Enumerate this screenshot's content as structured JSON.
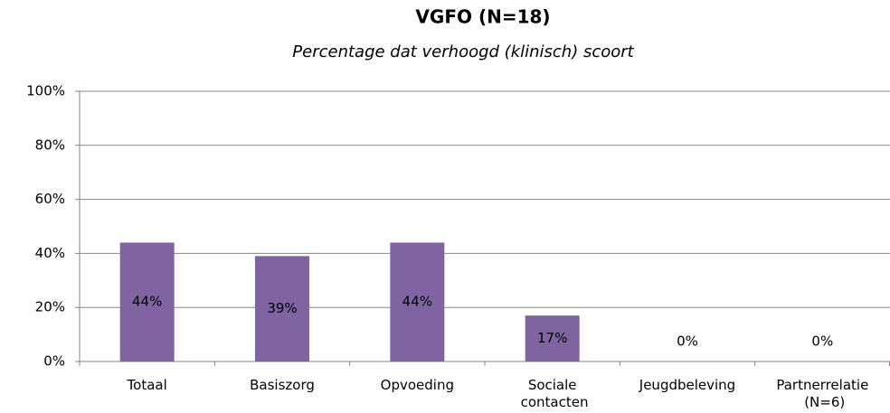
{
  "chart_data": {
    "type": "bar",
    "title": "VGFO (N=18)",
    "subtitle": "Percentage dat verhoogd (klinisch) scoort",
    "categories": [
      "Totaal",
      "Basiszorg",
      "Opvoeding",
      "Sociale contacten",
      "Jeugdbeleving",
      "Partnerrelatie (N=6)"
    ],
    "values": [
      44,
      39,
      44,
      17,
      0,
      0
    ],
    "value_labels": [
      "44%",
      "39%",
      "44%",
      "17%",
      "0%",
      "0%"
    ],
    "color": "#8064a2",
    "ylim": [
      0,
      100
    ],
    "yticks": [
      {
        "value": 0,
        "label": "0%"
      },
      {
        "value": 20,
        "label": "20%"
      },
      {
        "value": 40,
        "label": "40%"
      },
      {
        "value": 60,
        "label": "60%"
      },
      {
        "value": 80,
        "label": "80%"
      },
      {
        "value": 100,
        "label": "100%"
      }
    ],
    "grid": true
  }
}
